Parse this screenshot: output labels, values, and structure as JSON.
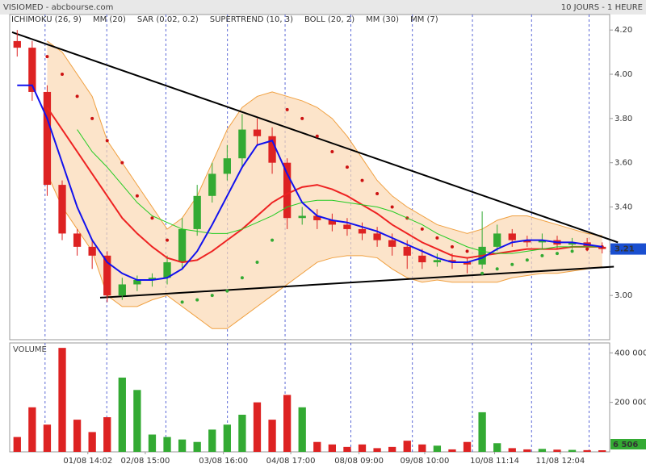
{
  "chart_data": [
    {
      "type": "candlestick",
      "title": "VISIOMED - abcbourse.com",
      "subtitle": "10 JOURS - 1 HEURE",
      "open": [
        4.15,
        4.12,
        3.92,
        3.5,
        3.28,
        3.22,
        3.18,
        3.0,
        3.05,
        3.07,
        3.08,
        3.15,
        3.3,
        3.45,
        3.55,
        3.62,
        3.75,
        3.72,
        3.6,
        3.35,
        3.36,
        3.34,
        3.32,
        3.3,
        3.28,
        3.25,
        3.22,
        3.18,
        3.15,
        3.16,
        3.15,
        3.14,
        3.22,
        3.28,
        3.25,
        3.24,
        3.25,
        3.23,
        3.24,
        3.22
      ],
      "high": [
        4.2,
        4.15,
        3.95,
        3.52,
        3.3,
        3.25,
        3.2,
        3.08,
        3.09,
        3.1,
        3.18,
        3.35,
        3.5,
        3.6,
        3.68,
        3.82,
        3.8,
        3.76,
        3.62,
        3.4,
        3.39,
        3.37,
        3.35,
        3.33,
        3.31,
        3.28,
        3.25,
        3.21,
        3.19,
        3.19,
        3.17,
        3.38,
        3.32,
        3.3,
        3.27,
        3.28,
        3.27,
        3.26,
        3.26,
        3.24
      ],
      "low": [
        4.08,
        3.88,
        3.45,
        3.25,
        3.18,
        3.12,
        2.97,
        2.98,
        3.02,
        3.04,
        3.05,
        3.12,
        3.27,
        3.42,
        3.52,
        3.58,
        3.68,
        3.55,
        3.3,
        3.32,
        3.3,
        3.29,
        3.27,
        3.25,
        3.22,
        3.18,
        3.12,
        3.12,
        3.13,
        3.12,
        3.1,
        3.12,
        3.2,
        3.22,
        3.22,
        3.21,
        3.21,
        3.21,
        3.2,
        3.19
      ],
      "close": [
        4.12,
        3.92,
        3.5,
        3.28,
        3.22,
        3.18,
        3.0,
        3.05,
        3.07,
        3.08,
        3.15,
        3.3,
        3.45,
        3.55,
        3.62,
        3.75,
        3.72,
        3.6,
        3.35,
        3.36,
        3.34,
        3.32,
        3.3,
        3.28,
        3.25,
        3.22,
        3.18,
        3.15,
        3.16,
        3.15,
        3.14,
        3.22,
        3.28,
        3.25,
        3.24,
        3.25,
        3.23,
        3.24,
        3.22,
        3.21
      ],
      "up_color": "#33aa33",
      "down_color": "#dd2222",
      "xlim": [
        -0.5,
        39.5
      ],
      "xticks": [
        {
          "value": 4.71,
          "label": "01/08 14:02"
        },
        {
          "value": 8.54,
          "label": "02/08 15:00"
        },
        {
          "value": 13.75,
          "label": "03/08 16:00"
        },
        {
          "value": 18.24,
          "label": "04/08 17:00"
        },
        {
          "value": 22.79,
          "label": "08/08 09:00"
        },
        {
          "value": 27.17,
          "label": "09/08 10:00"
        },
        {
          "value": 31.83,
          "label": "10/08 11:14"
        },
        {
          "value": 36.21,
          "label": "11/08 12:04"
        }
      ],
      "vlines": [
        1.86,
        5.97,
        9.91,
        14.02,
        17.86,
        22.24,
        26.35,
        30.35,
        34.29,
        38.13
      ],
      "ylim": [
        2.8,
        4.27
      ],
      "yticks": [
        {
          "value": 3,
          "label": "3.00"
        },
        {
          "value": 3.2,
          "label": "3.20"
        },
        {
          "value": 3.4,
          "label": "3.40"
        },
        {
          "value": 3.6,
          "label": "3.60"
        },
        {
          "value": 3.8,
          "label": "3.80"
        },
        {
          "value": 4,
          "label": "4.00"
        },
        {
          "value": 4.2,
          "label": "4.20"
        }
      ],
      "series": [
        {
          "name": "ICHIMOKU (26, 9)",
          "color": "#3333cc"
        },
        {
          "name": "MM (20)",
          "color": "#ee2222",
          "style": "line",
          "values": [
            null,
            null,
            3.85,
            3.75,
            3.65,
            3.55,
            3.45,
            3.35,
            3.28,
            3.22,
            3.17,
            3.15,
            3.16,
            3.2,
            3.25,
            3.3,
            3.36,
            3.42,
            3.46,
            3.49,
            3.5,
            3.48,
            3.45,
            3.41,
            3.37,
            3.32,
            3.28,
            3.24,
            3.21,
            3.18,
            3.17,
            3.18,
            3.19,
            3.2,
            3.21,
            3.21,
            3.21,
            3.22,
            3.22,
            3.22
          ]
        },
        {
          "name": "SAR (0.02, 0.2)",
          "color": "#cc1111",
          "style": "dots",
          "values": [
            null,
            null,
            4.08,
            4.0,
            3.9,
            3.8,
            3.7,
            3.6,
            3.45,
            3.35,
            3.25,
            2.97,
            2.98,
            3.0,
            3.02,
            3.08,
            3.15,
            3.25,
            3.84,
            3.8,
            3.72,
            3.65,
            3.58,
            3.52,
            3.46,
            3.4,
            3.35,
            3.3,
            3.26,
            3.22,
            3.2,
            3.1,
            3.12,
            3.14,
            3.16,
            3.18,
            3.19,
            3.2,
            3.21,
            3.22
          ]
        },
        {
          "name": "SUPERTREND (10, 3)",
          "color": "#117711"
        },
        {
          "name": "BOLL (20, 2)",
          "color": "#f0a040",
          "style": "band",
          "upper": [
            null,
            null,
            4.15,
            4.1,
            4.0,
            3.9,
            3.7,
            3.6,
            3.5,
            3.4,
            3.3,
            3.35,
            3.45,
            3.6,
            3.75,
            3.85,
            3.9,
            3.92,
            3.9,
            3.88,
            3.85,
            3.8,
            3.72,
            3.62,
            3.52,
            3.45,
            3.4,
            3.36,
            3.32,
            3.3,
            3.28,
            3.3,
            3.34,
            3.36,
            3.36,
            3.34,
            3.32,
            3.3,
            3.28,
            3.27
          ],
          "lower": [
            null,
            null,
            3.55,
            3.4,
            3.3,
            3.2,
            3.0,
            2.95,
            2.95,
            2.98,
            3.0,
            2.95,
            2.9,
            2.85,
            2.85,
            2.9,
            2.95,
            3.0,
            3.05,
            3.1,
            3.15,
            3.17,
            3.18,
            3.18,
            3.17,
            3.12,
            3.08,
            3.06,
            3.07,
            3.06,
            3.06,
            3.06,
            3.06,
            3.08,
            3.09,
            3.1,
            3.1,
            3.11,
            3.12,
            3.13
          ]
        },
        {
          "name": "MM (30)",
          "color": "#22cc22",
          "style": "line",
          "values": [
            null,
            null,
            null,
            null,
            3.75,
            3.65,
            3.58,
            3.5,
            3.42,
            3.36,
            3.33,
            3.3,
            3.29,
            3.28,
            3.28,
            3.3,
            3.33,
            3.36,
            3.4,
            3.42,
            3.43,
            3.43,
            3.42,
            3.41,
            3.4,
            3.38,
            3.35,
            3.32,
            3.28,
            3.25,
            3.22,
            3.2,
            3.19,
            3.19,
            3.2,
            3.21,
            3.22,
            3.22,
            3.22,
            3.22
          ]
        },
        {
          "name": "MM (7)",
          "color": "#1111ee",
          "style": "line",
          "values": [
            3.95,
            3.95,
            3.8,
            3.6,
            3.4,
            3.25,
            3.15,
            3.1,
            3.07,
            3.07,
            3.08,
            3.12,
            3.2,
            3.32,
            3.45,
            3.58,
            3.68,
            3.7,
            3.55,
            3.42,
            3.36,
            3.34,
            3.33,
            3.31,
            3.29,
            3.26,
            3.23,
            3.2,
            3.17,
            3.15,
            3.15,
            3.17,
            3.21,
            3.24,
            3.25,
            3.25,
            3.24,
            3.24,
            3.23,
            3.22
          ]
        }
      ],
      "trendlines": [
        {
          "from": [
            -0.34,
            4.19
          ],
          "to": [
            40.05,
            3.24
          ]
        },
        {
          "from": [
            5.53,
            2.99
          ],
          "to": [
            39.78,
            3.13
          ]
        }
      ],
      "last": 3.21,
      "last_label": "3.21"
    },
    {
      "type": "bar",
      "title": "VOLUME",
      "values": [
        60000,
        180000,
        110000,
        420000,
        130000,
        80000,
        140000,
        300000,
        250000,
        70000,
        60000,
        50000,
        40000,
        90000,
        110000,
        150000,
        200000,
        130000,
        230000,
        180000,
        40000,
        30000,
        20000,
        30000,
        15000,
        20000,
        45000,
        30000,
        25000,
        10000,
        40000,
        160000,
        35000,
        15000,
        10000,
        12000,
        9000,
        8000,
        7000,
        6506
      ],
      "ylim": [
        0,
        440000
      ],
      "yticks": [
        {
          "value": 200000,
          "label": "200 000"
        },
        {
          "value": 400000,
          "label": "400 000"
        }
      ],
      "last": 6506,
      "last_label": "6 506"
    }
  ]
}
